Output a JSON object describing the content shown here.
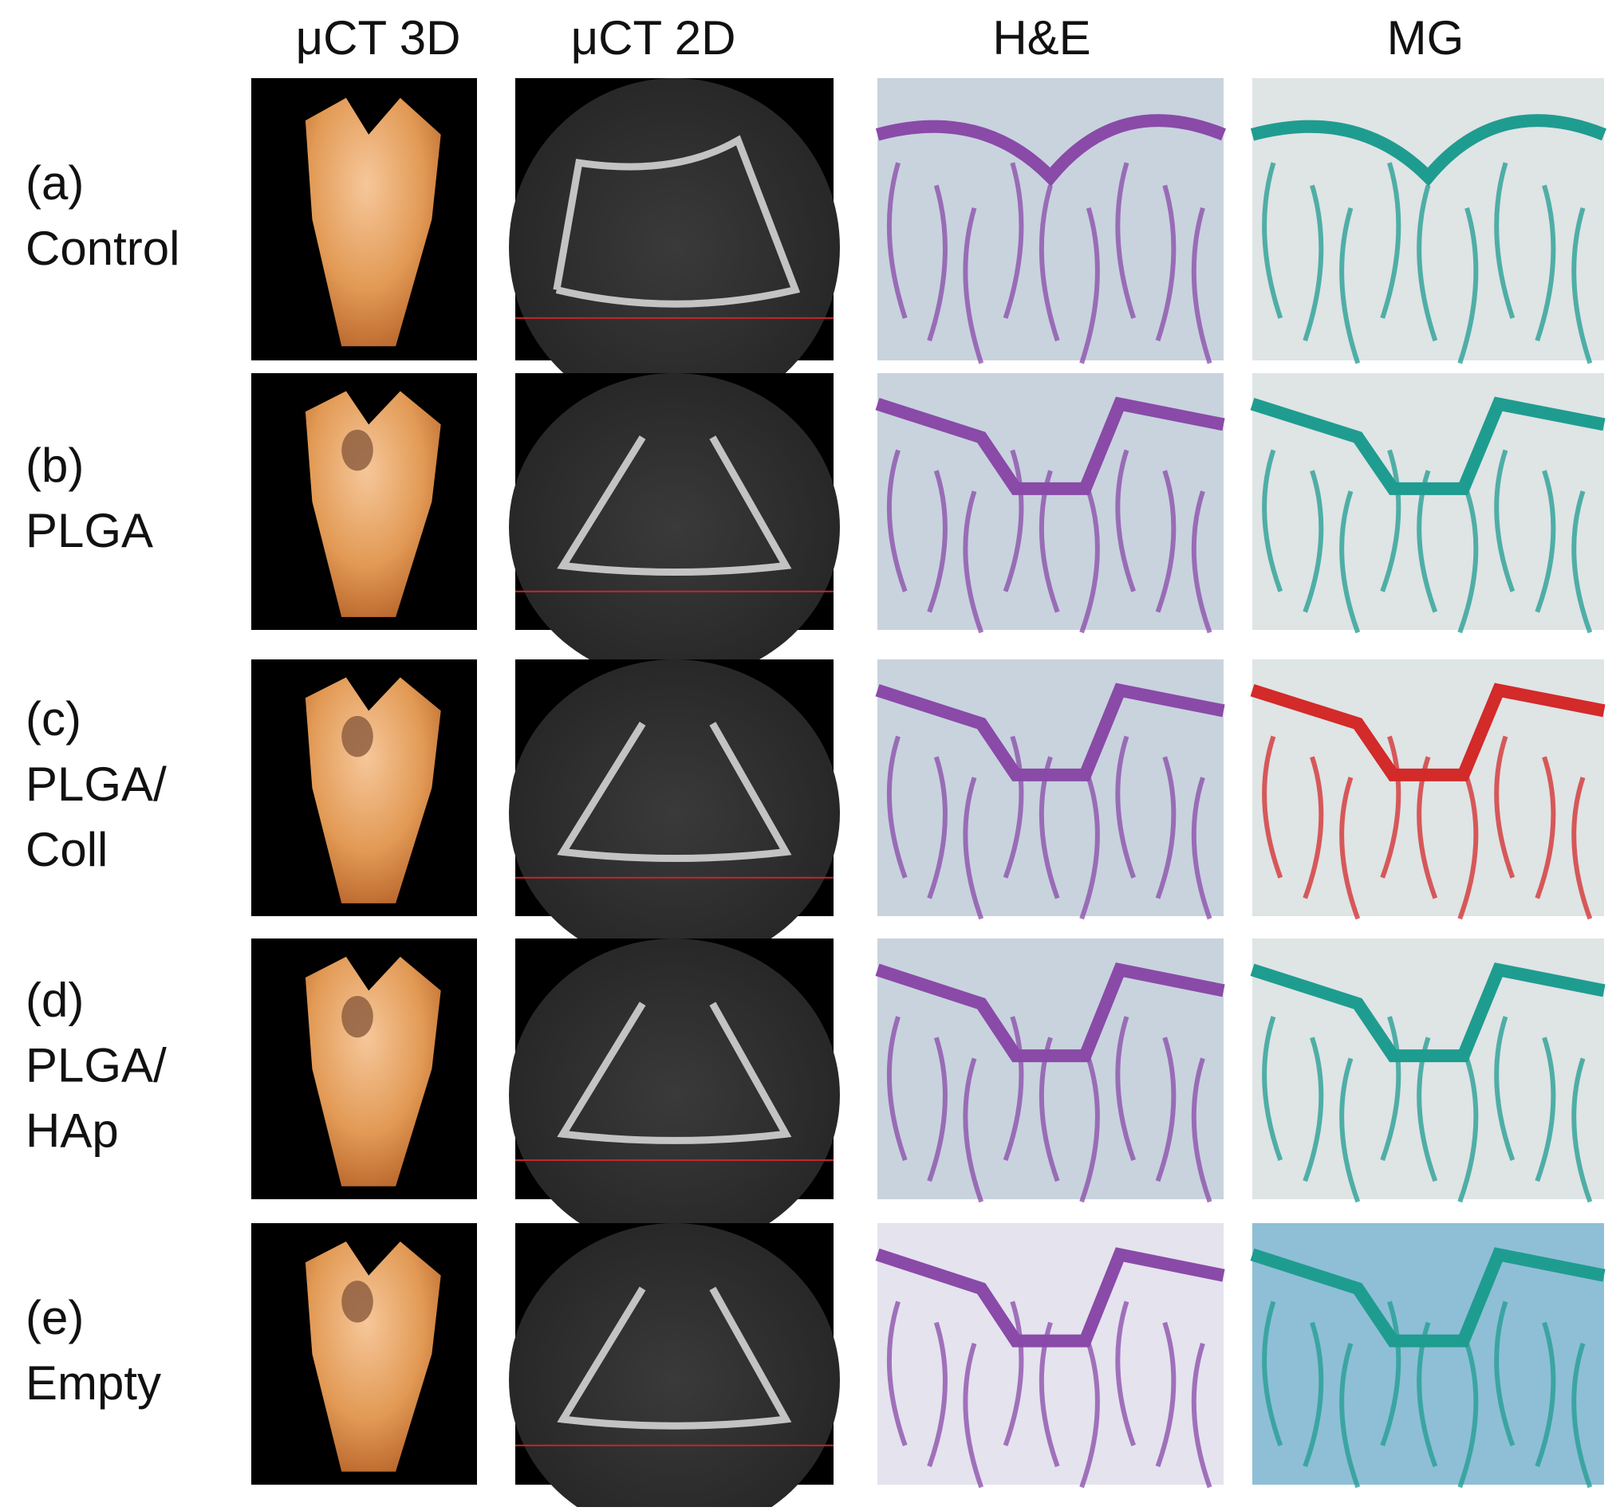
{
  "columns": [
    "μCT 3D",
    "μCT 2D",
    "H&E",
    "MG"
  ],
  "rows": [
    {
      "label": [
        "(a)",
        "Control"
      ]
    },
    {
      "label": [
        "(b)",
        "PLGA"
      ]
    },
    {
      "label": [
        "(c)",
        "PLGA/",
        "Coll"
      ]
    },
    {
      "label": [
        "(d)",
        "PLGA/",
        "HAp"
      ]
    },
    {
      "label": [
        "(e)",
        "Empty"
      ]
    }
  ]
}
